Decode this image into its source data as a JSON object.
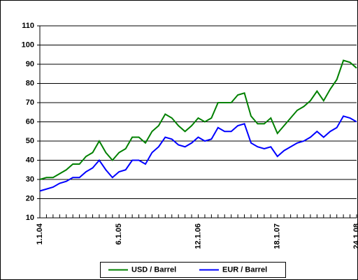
{
  "chart_data": {
    "type": "line",
    "categories": [
      "1.1.04",
      null,
      null,
      null,
      null,
      null,
      null,
      null,
      null,
      null,
      null,
      null,
      "6.1.05",
      null,
      null,
      null,
      null,
      null,
      null,
      null,
      null,
      null,
      null,
      null,
      "12.1.06",
      null,
      null,
      null,
      null,
      null,
      null,
      null,
      null,
      null,
      null,
      null,
      "18.1.07",
      null,
      null,
      null,
      null,
      null,
      null,
      null,
      null,
      null,
      null,
      null,
      "24.1.08"
    ],
    "series": [
      {
        "name": "USD / Barrel",
        "color": "#008000",
        "values": [
          30,
          31,
          31,
          33,
          35,
          38,
          38,
          42,
          44,
          50,
          44,
          40,
          44,
          46,
          52,
          52,
          49,
          55,
          58,
          64,
          62,
          58,
          55,
          58,
          62,
          60,
          62,
          70,
          70,
          70,
          74,
          75,
          63,
          59,
          59,
          62,
          54,
          58,
          62,
          66,
          68,
          71,
          76,
          71,
          77,
          82,
          92,
          91,
          88
        ]
      },
      {
        "name": "EUR / Barrel",
        "color": "#0000ff",
        "values": [
          24,
          25,
          26,
          28,
          29,
          31,
          31,
          34,
          36,
          40,
          35,
          31,
          34,
          35,
          40,
          40,
          38,
          44,
          47,
          52,
          51,
          48,
          47,
          49,
          52,
          50,
          51,
          57,
          55,
          55,
          58,
          59,
          49,
          47,
          46,
          47,
          42,
          45,
          47,
          49,
          50,
          52,
          55,
          52,
          55,
          57,
          63,
          62,
          60
        ]
      }
    ],
    "ylim": [
      10,
      110
    ],
    "yticks": [
      10,
      20,
      30,
      40,
      50,
      60,
      70,
      80,
      90,
      100,
      110
    ],
    "grid": true,
    "legend": "bottom"
  }
}
